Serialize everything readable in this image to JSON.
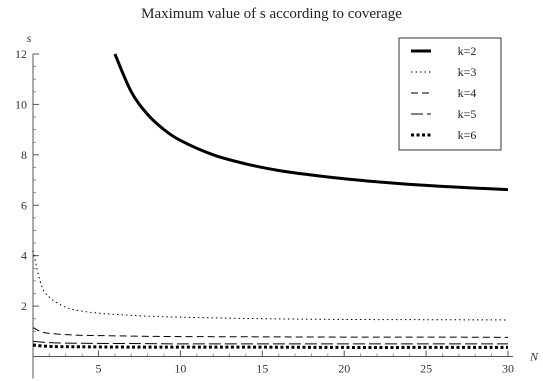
{
  "chart_data": {
    "type": "line",
    "title": "Maximum value of s according to coverage",
    "xlabel": "N",
    "ylabel": "s",
    "xlim": [
      1,
      30
    ],
    "ylim": [
      0,
      12
    ],
    "xticks": [
      5,
      10,
      15,
      20,
      25,
      30
    ],
    "yticks": [
      2,
      4,
      6,
      8,
      10,
      12
    ],
    "grid": false,
    "legend_position": "top-right",
    "series": [
      {
        "name": "k=2",
        "style": "solid-thick",
        "color": "#000000",
        "x": [
          6,
          7,
          8,
          9,
          10,
          12,
          14,
          16,
          18,
          20,
          22,
          24,
          26,
          28,
          30
        ],
        "y": [
          12.0,
          10.5,
          9.6,
          9.0,
          8.57,
          8.0,
          7.64,
          7.38,
          7.2,
          7.05,
          6.93,
          6.83,
          6.75,
          6.68,
          6.62
        ]
      },
      {
        "name": "k=3",
        "style": "dotted",
        "color": "#000000",
        "x": [
          1,
          1.5,
          2,
          3,
          4,
          5,
          6,
          8,
          10,
          15,
          20,
          25,
          30
        ],
        "y": [
          4.2,
          2.85,
          2.35,
          1.95,
          1.8,
          1.72,
          1.67,
          1.6,
          1.56,
          1.5,
          1.47,
          1.46,
          1.45
        ]
      },
      {
        "name": "k=4",
        "style": "dashed",
        "color": "#000000",
        "x": [
          1,
          1.5,
          2,
          3,
          4,
          5,
          6,
          8,
          10,
          15,
          20,
          25,
          30
        ],
        "y": [
          1.15,
          0.98,
          0.92,
          0.87,
          0.84,
          0.83,
          0.82,
          0.8,
          0.79,
          0.78,
          0.77,
          0.77,
          0.76
        ]
      },
      {
        "name": "k=5",
        "style": "long-dash",
        "color": "#000000",
        "x": [
          1,
          2,
          3,
          5,
          8,
          10,
          15,
          20,
          25,
          30
        ],
        "y": [
          0.6,
          0.55,
          0.53,
          0.52,
          0.51,
          0.5,
          0.5,
          0.5,
          0.5,
          0.5
        ]
      },
      {
        "name": "k=6",
        "style": "dotted-thick",
        "color": "#000000",
        "x": [
          1,
          2,
          3,
          5,
          8,
          10,
          15,
          20,
          25,
          30
        ],
        "y": [
          0.45,
          0.4,
          0.39,
          0.38,
          0.37,
          0.37,
          0.37,
          0.36,
          0.36,
          0.36
        ]
      }
    ]
  }
}
